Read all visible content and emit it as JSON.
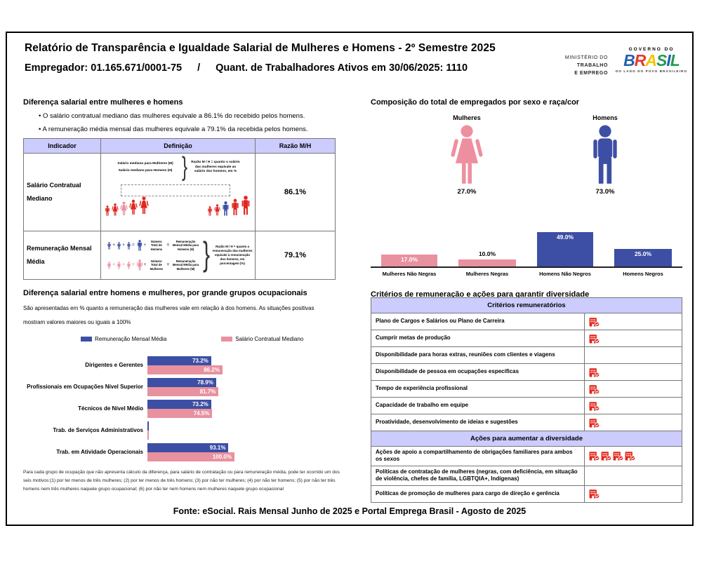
{
  "page": {
    "title": "Relatório de Transparência e Igualdade Salarial de Mulheres e Homens - 2º Semestre 2025",
    "employer_label": "Empregador: 01.165.671/0001-75",
    "separator": "/",
    "headcount_label": "Quant. de Trabalhadores Ativos em 30/06/2025: 1110",
    "footer": "Fonte: eSocial. Rais Mensal Junho de 2025 e Portal Emprega Brasil - Agosto de 2025"
  },
  "logos": {
    "ministry_lines": [
      "MINISTÉRIO DO",
      "TRABALHO",
      "E EMPREGO"
    ],
    "gov_top": "GOVERNO DO",
    "gov_brand_letters": [
      {
        "ch": "B",
        "color": "#2660b0"
      },
      {
        "ch": "R",
        "color": "#e23c2b"
      },
      {
        "ch": "A",
        "color": "#f5c400"
      },
      {
        "ch": "S",
        "color": "#239b4c"
      },
      {
        "ch": "I",
        "color": "#2660b0"
      },
      {
        "ch": "L",
        "color": "#239b4c"
      }
    ],
    "gov_tagline": "DO LADO DO POVO BRASILEIRO"
  },
  "salary_gap": {
    "title": "Diferença salarial entre mulheres e homens",
    "bullets": [
      "O salário contratual mediano das mulheres equivale a 86.1% do recebido pelos homens.",
      "A remuneração média mensal das mulheres equivale a 79.1% da recebida pelos homens."
    ],
    "table": {
      "headers": [
        "Indicador",
        "Definição",
        "Razão M/H"
      ],
      "rows": [
        {
          "indicator": "Salário Contratual Mediano",
          "ratio": "86.1%",
          "def_lines": [
            "Salário mediano para Mulheres (M)",
            "Salário mediano para Homens (H)"
          ],
          "def_note": "Razão M / H = quanto o salário das mulheres equivale ao salário dos homens, em %"
        },
        {
          "indicator": "Remuneração Mensal Média",
          "ratio": "79.1%",
          "formulas": [
            {
              "divisor": "Número Total de Homens",
              "result": "Remuneração Mensal Média para Homens (H)",
              "color": "#3d4fa4",
              "shape": "man"
            },
            {
              "divisor": "Número Total de Mulheres",
              "result": "Remuneração Mensal Média para Mulheres (M)",
              "color": "#ee8fa0",
              "shape": "woman"
            }
          ],
          "def_note": "Razão M / H = quanto a remuneração das mulheres equivale à remuneração dos homens, em porcentagem (%)"
        }
      ]
    }
  },
  "composition": {
    "title": "Composição do total de empregados por sexo e raça/cor",
    "female_label": "Mulheres",
    "female_value": "27.0%",
    "male_label": "Homens",
    "male_value": "73.0%"
  },
  "occupational": {
    "title": "Diferença salarial entre homens e mulheres, por grande grupos ocupacionais",
    "subtitle_lines": [
      "São apresentadas em % quanto a remuneração das mulheres vale em relação à dos homens. As situações positivas",
      "mostram valores maiores ou iguais a 100%"
    ],
    "footnote": "Para cada grupo de ocupação que não apresenta cálculo da diferença, para salário de contratação ou para remuneração média, pode ter ocorrido um dos seis motivos:(1) por ter menos de três mulheres; (2) por ter menos de três homens; (3) por não ter mulheres; (4) por não ter homens; (5) por não ter três homens nem três mulheres naquele grupo ocupacional; (6) por não ter nem homens nem mulheres naquele grupo ocupacional"
  },
  "criteria": {
    "title": "Critérios de remuneração e ações para garantir diversidade",
    "sections": [
      {
        "header": "Critérios remuneratórios",
        "rows": [
          {
            "label": "Plano de Cargos e Salários ou Plano de Carreira",
            "icons": 1
          },
          {
            "label": "Cumprir metas de produção",
            "icons": 1
          },
          {
            "label": "Disponibilidade para horas extras, reuniões com clientes e viagens",
            "icons": 0
          },
          {
            "label": "Disponibilidade de pessoa em ocupações específicas",
            "icons": 1
          },
          {
            "label": "Tempo de experiência profissional",
            "icons": 1
          },
          {
            "label": "Capacidade de trabalho em equipe",
            "icons": 1
          },
          {
            "label": "Proatividade, desenvolvimento de ideias e sugestões",
            "icons": 1
          }
        ]
      },
      {
        "header": "Ações para aumentar a diversidade",
        "rows": [
          {
            "label": "Ações de apoio a compartilhamento de obrigações familiares para ambos os sexos",
            "icons": 4
          },
          {
            "label": "Políticas de contratação de mulheres (negras, com deficiência, em situação de violência, chefes de família, LGBTQIA+, Indígenas)",
            "icons": 0
          },
          {
            "label": "Políticas de promoção de mulheres para cargo de direção e gerência",
            "icons": 1
          }
        ]
      }
    ]
  },
  "colors": {
    "blue": "#3d4fa4",
    "pink": "#e8919f",
    "pink_icon": "#ee8fa0",
    "red_figure": "#e02720",
    "red_icon": "#e32219",
    "header_bg": "#ccccff"
  },
  "chart_data": [
    {
      "id": "gender_composition_pictogram",
      "type": "pie",
      "title": "Composição do total de empregados por sexo e raça/cor",
      "categories": [
        "Mulheres",
        "Homens"
      ],
      "values": [
        27.0,
        73.0
      ],
      "unit": "%",
      "colors": [
        "#ee8fa0",
        "#3d4fa4"
      ]
    },
    {
      "id": "composition_by_race",
      "type": "bar",
      "categories": [
        "Mulheres Não Negras",
        "Mulheres Negras",
        "Homens Não Negros",
        "Homens Negros"
      ],
      "values": [
        17.0,
        10.0,
        49.0,
        25.0
      ],
      "unit": "%",
      "bar_colors": [
        "#e8919f",
        "#e8919f",
        "#3d4fa4",
        "#3d4fa4"
      ],
      "ylim": [
        0,
        53
      ],
      "grid": false,
      "value_labels": true
    },
    {
      "id": "pay_gap_by_occupation",
      "type": "bar",
      "orientation": "horizontal",
      "categories": [
        "Dirigentes e Gerentes",
        "Profissionais em Ocupações Nível Superior",
        "Técnicos de Nível Médio",
        "Trab. de Serviços Administrativos",
        "Trab. em Atividade Operacionais"
      ],
      "series": [
        {
          "name": "Remuneração Mensal Média",
          "color": "#3d4fa4",
          "values": [
            73.2,
            78.9,
            73.2,
            null,
            93.1
          ]
        },
        {
          "name": "Salário Contratual Mediano",
          "color": "#e8919f",
          "values": [
            86.2,
            81.7,
            74.5,
            null,
            100.0
          ]
        }
      ],
      "unit": "%",
      "xlim": [
        0,
        100
      ],
      "legend_position": "top",
      "grid": false
    },
    {
      "id": "pay_ratio_indicators",
      "type": "table",
      "categories": [
        "Salário Contratual Mediano",
        "Remuneração Mensal Média"
      ],
      "values": [
        86.1,
        79.1
      ],
      "unit": "%"
    }
  ]
}
